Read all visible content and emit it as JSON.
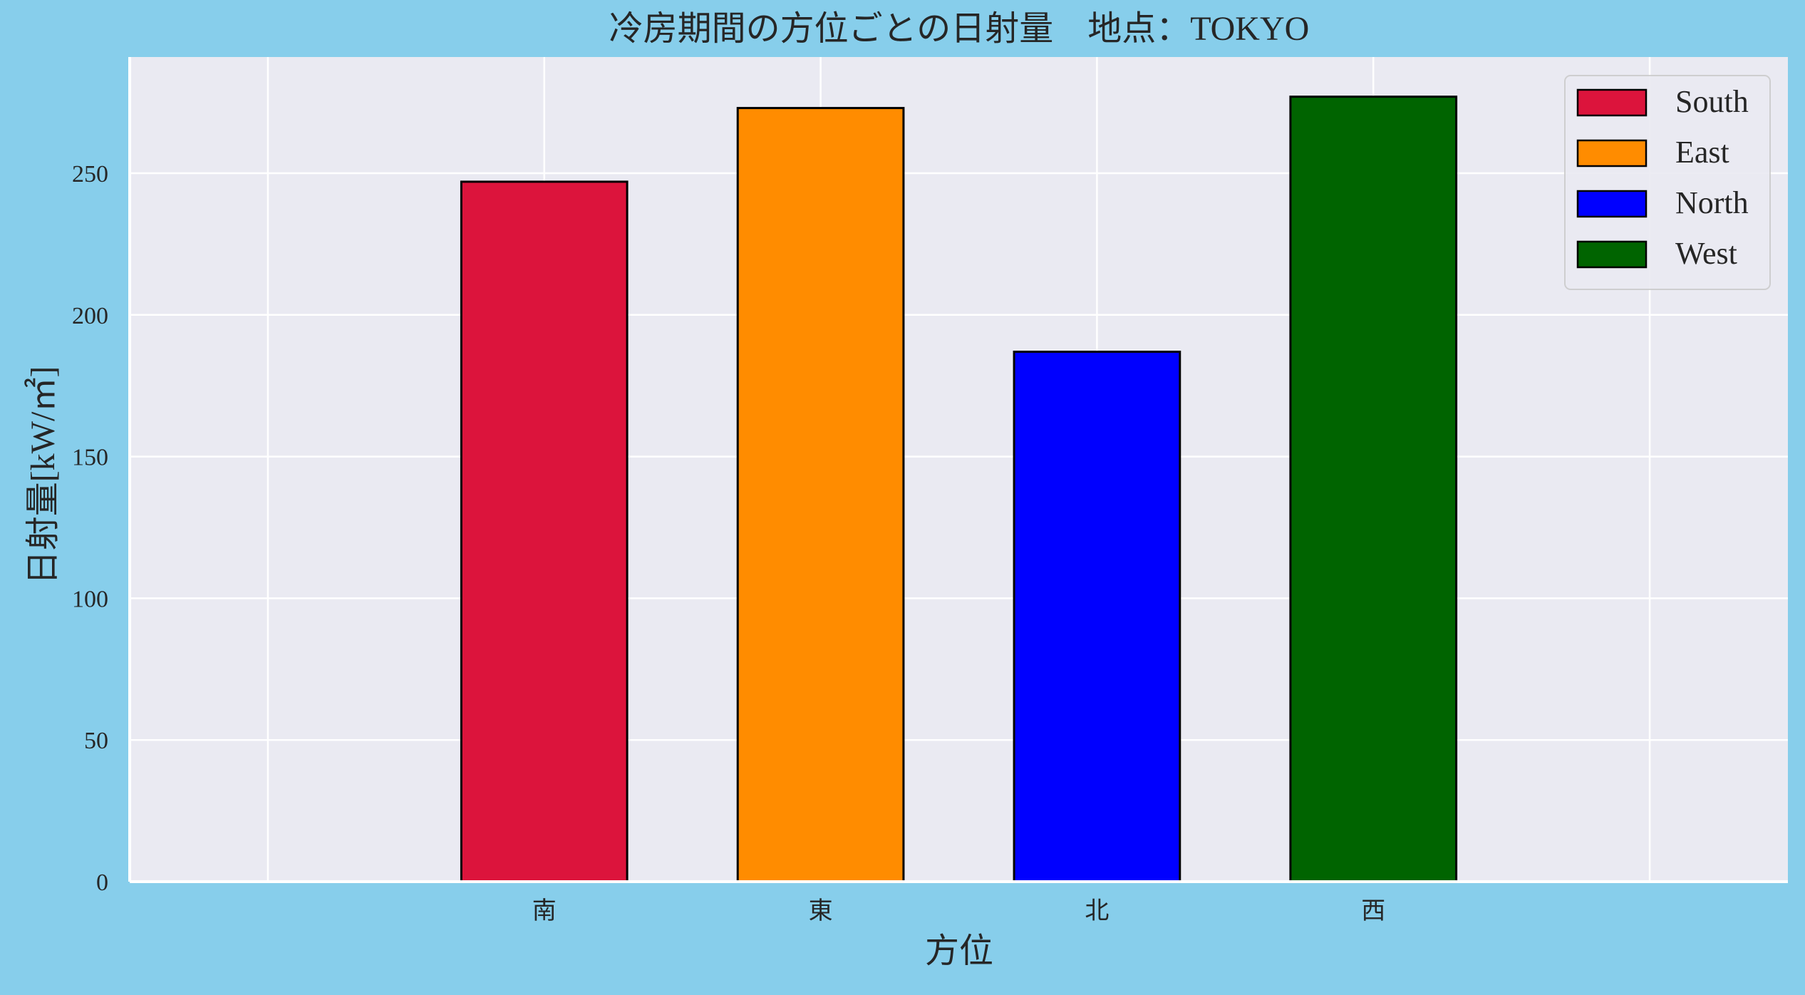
{
  "chart_data": {
    "type": "bar",
    "title": "冷房期間の方位ごとの日射量　地点：TOKYO",
    "xlabel": "方位",
    "ylabel": "日射量[kW/㎡]",
    "categories": [
      "",
      "南",
      "東",
      "北",
      "西",
      ""
    ],
    "series": [
      {
        "name": "South",
        "category": "南",
        "value": 247,
        "color": "#dc143c"
      },
      {
        "name": "East",
        "category": "東",
        "value": 273,
        "color": "#ff8c00"
      },
      {
        "name": "North",
        "category": "北",
        "value": 187,
        "color": "#0000ff"
      },
      {
        "name": "West",
        "category": "西",
        "value": 277,
        "color": "#006400"
      }
    ],
    "ylim": [
      0,
      291
    ],
    "yticks": [
      0,
      50,
      100,
      150,
      200,
      250
    ],
    "grid": true,
    "legend_position": "top-right",
    "colors": {
      "figure_background": "#87ceeb",
      "plot_background": "#eaeaf2",
      "grid": "#ffffff",
      "bar_edge": "#000000",
      "text": "#262626"
    }
  }
}
